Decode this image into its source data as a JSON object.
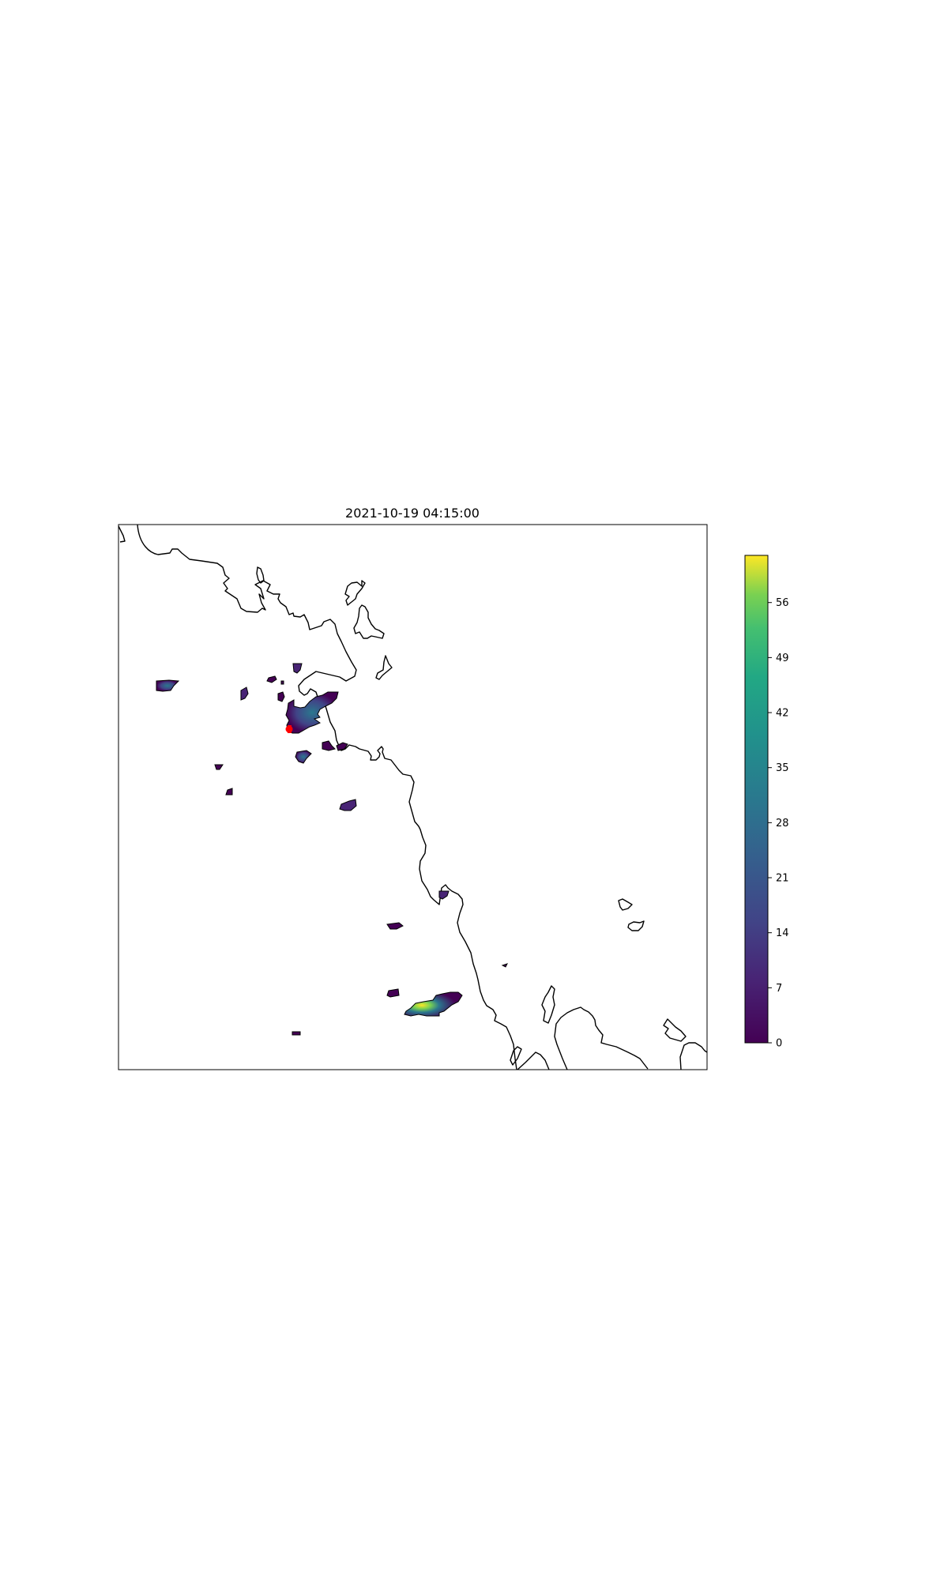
{
  "map": {
    "title": "2021-10-19 04:15:00",
    "colormap": "viridis",
    "colorbar": {
      "min": 0,
      "max": 62,
      "ticks": [
        0,
        7,
        14,
        21,
        28,
        35,
        42,
        49,
        56
      ],
      "tick_labels": [
        "0",
        "7",
        "14",
        "21",
        "28",
        "35",
        "42",
        "49",
        "56"
      ],
      "placement": "right"
    },
    "marker": {
      "color": "#ff0000",
      "shape": "point"
    },
    "colors": {
      "viridis_low": "#440154",
      "viridis_mid": "#21918c",
      "viridis_high": "#fde725",
      "coastline": "#000000"
    }
  }
}
